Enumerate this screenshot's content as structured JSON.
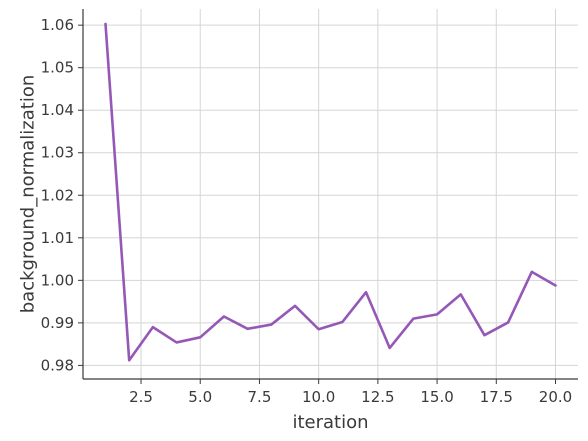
{
  "chart_data": {
    "type": "line",
    "title": "",
    "xlabel": "iteration",
    "ylabel": "background_normalization",
    "xlim": [
      0.05,
      20.95
    ],
    "ylim": [
      0.9768,
      1.0638
    ],
    "xticks": [
      2.5,
      5.0,
      7.5,
      10.0,
      12.5,
      15.0,
      17.5,
      20.0
    ],
    "xtick_labels": [
      "2.5",
      "5.0",
      "7.5",
      "10.0",
      "12.5",
      "15.0",
      "17.5",
      "20.0"
    ],
    "yticks": [
      0.98,
      0.99,
      1.0,
      1.01,
      1.02,
      1.03,
      1.04,
      1.05,
      1.06
    ],
    "ytick_labels": [
      "0.98",
      "0.99",
      "1.00",
      "1.01",
      "1.02",
      "1.03",
      "1.04",
      "1.05",
      "1.06"
    ],
    "grid": true,
    "series": [
      {
        "color": "#9558b7",
        "x": [
          1,
          2,
          3,
          4,
          5,
          6,
          7,
          8,
          9,
          10,
          11,
          12,
          13,
          14,
          15,
          16,
          17,
          18,
          19,
          20
        ],
        "values": [
          1.0603,
          0.9812,
          0.989,
          0.9854,
          0.9866,
          0.9915,
          0.9886,
          0.9896,
          0.994,
          0.9885,
          0.9902,
          0.9972,
          0.9841,
          0.991,
          0.992,
          0.9967,
          0.9871,
          0.9901,
          1.002,
          0.9988
        ]
      }
    ]
  }
}
